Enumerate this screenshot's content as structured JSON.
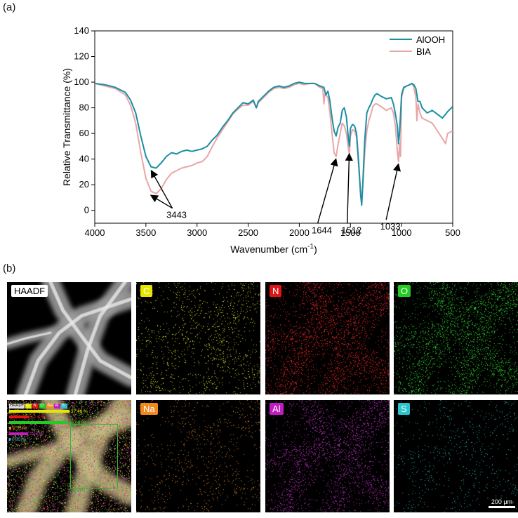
{
  "figure": {
    "panel_a_label": "(a)",
    "panel_b_label": "(b)"
  },
  "chart_data": {
    "type": "line",
    "xlabel_main": "Wavenumber (cm",
    "xlabel_sup": "-1",
    "xlabel_tail": ")",
    "ylabel": "Relative Transmittance (%)",
    "xlim": [
      4000,
      500
    ],
    "ylim": [
      -10,
      140
    ],
    "x_ticks": [
      4000,
      3500,
      3000,
      2500,
      2000,
      1500,
      1000,
      500
    ],
    "y_ticks": [
      0,
      20,
      40,
      60,
      80,
      100,
      120,
      140
    ],
    "legend_position": "top-right",
    "series": [
      {
        "name": "AlOOH",
        "color": "#1a8fa3",
        "points": [
          [
            4000,
            99
          ],
          [
            3900,
            98
          ],
          [
            3800,
            96
          ],
          [
            3700,
            92
          ],
          [
            3650,
            86
          ],
          [
            3600,
            76
          ],
          [
            3550,
            58
          ],
          [
            3500,
            42
          ],
          [
            3450,
            34
          ],
          [
            3400,
            33
          ],
          [
            3350,
            37
          ],
          [
            3300,
            42
          ],
          [
            3250,
            45
          ],
          [
            3200,
            44
          ],
          [
            3150,
            46
          ],
          [
            3100,
            47
          ],
          [
            3050,
            46
          ],
          [
            3000,
            47
          ],
          [
            2950,
            48
          ],
          [
            2900,
            50
          ],
          [
            2850,
            55
          ],
          [
            2800,
            59
          ],
          [
            2750,
            65
          ],
          [
            2700,
            70
          ],
          [
            2650,
            76
          ],
          [
            2600,
            80
          ],
          [
            2550,
            84
          ],
          [
            2500,
            83
          ],
          [
            2450,
            86
          ],
          [
            2420,
            80
          ],
          [
            2400,
            85
          ],
          [
            2350,
            89
          ],
          [
            2300,
            93
          ],
          [
            2250,
            96
          ],
          [
            2200,
            97
          ],
          [
            2150,
            96
          ],
          [
            2100,
            97
          ],
          [
            2050,
            99
          ],
          [
            2000,
            100
          ],
          [
            1950,
            99
          ],
          [
            1900,
            99
          ],
          [
            1850,
            99
          ],
          [
            1800,
            97
          ],
          [
            1760,
            96
          ],
          [
            1740,
            90
          ],
          [
            1720,
            93
          ],
          [
            1700,
            85
          ],
          [
            1680,
            72
          ],
          [
            1660,
            62
          ],
          [
            1640,
            58
          ],
          [
            1620,
            65
          ],
          [
            1600,
            68
          ],
          [
            1580,
            78
          ],
          [
            1560,
            80
          ],
          [
            1540,
            73
          ],
          [
            1520,
            56
          ],
          [
            1510,
            50
          ],
          [
            1500,
            64
          ],
          [
            1480,
            67
          ],
          [
            1460,
            66
          ],
          [
            1440,
            60
          ],
          [
            1420,
            38
          ],
          [
            1400,
            12
          ],
          [
            1390,
            4
          ],
          [
            1380,
            20
          ],
          [
            1360,
            55
          ],
          [
            1340,
            76
          ],
          [
            1320,
            80
          ],
          [
            1300,
            83
          ],
          [
            1280,
            87
          ],
          [
            1260,
            90
          ],
          [
            1240,
            91
          ],
          [
            1200,
            89
          ],
          [
            1150,
            87
          ],
          [
            1100,
            88
          ],
          [
            1080,
            83
          ],
          [
            1060,
            75
          ],
          [
            1040,
            65
          ],
          [
            1030,
            52
          ],
          [
            1020,
            60
          ],
          [
            1000,
            90
          ],
          [
            980,
            96
          ],
          [
            950,
            97
          ],
          [
            920,
            98
          ],
          [
            900,
            99
          ],
          [
            880,
            98
          ],
          [
            860,
            95
          ],
          [
            850,
            90
          ],
          [
            840,
            85
          ],
          [
            820,
            85
          ],
          [
            800,
            80
          ],
          [
            750,
            76
          ],
          [
            700,
            78
          ],
          [
            650,
            75
          ],
          [
            600,
            72
          ],
          [
            550,
            77
          ],
          [
            500,
            81
          ]
        ]
      },
      {
        "name": "BIA",
        "color": "#e8a7a7",
        "points": [
          [
            4000,
            99
          ],
          [
            3900,
            97
          ],
          [
            3800,
            95
          ],
          [
            3700,
            90
          ],
          [
            3650,
            82
          ],
          [
            3600,
            68
          ],
          [
            3550,
            45
          ],
          [
            3500,
            25
          ],
          [
            3450,
            15
          ],
          [
            3400,
            13
          ],
          [
            3350,
            17
          ],
          [
            3300,
            24
          ],
          [
            3250,
            29
          ],
          [
            3200,
            31
          ],
          [
            3150,
            33
          ],
          [
            3100,
            34
          ],
          [
            3050,
            35
          ],
          [
            3000,
            37
          ],
          [
            2950,
            38
          ],
          [
            2900,
            42
          ],
          [
            2850,
            50
          ],
          [
            2800,
            57
          ],
          [
            2750,
            63
          ],
          [
            2700,
            69
          ],
          [
            2650,
            75
          ],
          [
            2600,
            79
          ],
          [
            2550,
            82
          ],
          [
            2500,
            82
          ],
          [
            2450,
            85
          ],
          [
            2420,
            80
          ],
          [
            2400,
            84
          ],
          [
            2350,
            88
          ],
          [
            2300,
            92
          ],
          [
            2250,
            95
          ],
          [
            2200,
            96
          ],
          [
            2150,
            95
          ],
          [
            2100,
            96
          ],
          [
            2050,
            98
          ],
          [
            2000,
            99
          ],
          [
            1950,
            98
          ],
          [
            1900,
            99
          ],
          [
            1850,
            99
          ],
          [
            1800,
            96
          ],
          [
            1770,
            95
          ],
          [
            1760,
            83
          ],
          [
            1750,
            91
          ],
          [
            1720,
            88
          ],
          [
            1700,
            76
          ],
          [
            1680,
            60
          ],
          [
            1660,
            45
          ],
          [
            1640,
            42
          ],
          [
            1620,
            52
          ],
          [
            1600,
            60
          ],
          [
            1580,
            68
          ],
          [
            1560,
            66
          ],
          [
            1540,
            60
          ],
          [
            1520,
            48
          ],
          [
            1510,
            44
          ],
          [
            1500,
            58
          ],
          [
            1480,
            63
          ],
          [
            1460,
            62
          ],
          [
            1440,
            57
          ],
          [
            1420,
            35
          ],
          [
            1400,
            10
          ],
          [
            1390,
            6
          ],
          [
            1380,
            18
          ],
          [
            1360,
            45
          ],
          [
            1340,
            62
          ],
          [
            1320,
            70
          ],
          [
            1300,
            75
          ],
          [
            1280,
            81
          ],
          [
            1260,
            83
          ],
          [
            1240,
            83
          ],
          [
            1200,
            81
          ],
          [
            1150,
            78
          ],
          [
            1100,
            80
          ],
          [
            1080,
            76
          ],
          [
            1060,
            65
          ],
          [
            1040,
            45
          ],
          [
            1030,
            38
          ],
          [
            1020,
            52
          ],
          [
            1010,
            42
          ],
          [
            1000,
            88
          ],
          [
            980,
            95
          ],
          [
            950,
            97
          ],
          [
            920,
            98
          ],
          [
            900,
            99
          ],
          [
            880,
            96
          ],
          [
            860,
            88
          ],
          [
            850,
            70
          ],
          [
            840,
            83
          ],
          [
            820,
            76
          ],
          [
            800,
            72
          ],
          [
            750,
            70
          ],
          [
            700,
            68
          ],
          [
            650,
            62
          ],
          [
            600,
            56
          ],
          [
            570,
            52
          ],
          [
            550,
            60
          ],
          [
            500,
            62
          ]
        ]
      }
    ],
    "annotations": [
      {
        "text": "3443",
        "x": 3443,
        "y": 32,
        "arrows": [
          [
            3443,
            32
          ],
          [
            3443,
            13
          ]
        ]
      },
      {
        "text": "1644",
        "x": 1644,
        "y": 41,
        "arrows": [
          [
            1644,
            41
          ]
        ]
      },
      {
        "text": "1512",
        "x": 1512,
        "y": 45,
        "arrows": [
          [
            1512,
            45
          ]
        ]
      },
      {
        "text": "1033",
        "x": 1033,
        "y": 37,
        "arrows": [
          [
            1033,
            37
          ]
        ]
      }
    ]
  },
  "maps": {
    "tiles": [
      {
        "label": "HAADF",
        "kind": "haadf"
      },
      {
        "label": "C",
        "kind": "element",
        "color": "#e6e600",
        "dot_color": "#cfcf2a",
        "density": 0.18
      },
      {
        "label": "N",
        "kind": "element",
        "color": "#e01414",
        "dot_color": "#d42222",
        "density": 0.45
      },
      {
        "label": "O",
        "kind": "element",
        "color": "#22cc22",
        "dot_color": "#2dbf2d",
        "density": 0.42
      },
      {
        "label": "",
        "kind": "overlay"
      },
      {
        "label": "Na",
        "kind": "element",
        "color": "#f08a1c",
        "dot_color": "#c9772a",
        "density": 0.12
      },
      {
        "label": "Al",
        "kind": "element",
        "color": "#c21cc2",
        "dot_color": "#a62ea6",
        "density": 0.38
      },
      {
        "label": "S",
        "kind": "element",
        "color": "#29c4cc",
        "dot_color": "#2fa8a8",
        "density": 0.1
      }
    ],
    "overlay_legend": {
      "chips": [
        "HAADF",
        "C",
        "N",
        "O",
        "Na",
        "Al",
        "S"
      ],
      "chip_colors": [
        "#dddddd",
        "#e6e600",
        "#e01414",
        "#22cc22",
        "#f08a1c",
        "#c21cc2",
        "#29c4cc"
      ],
      "rows": [
        {
          "text": "37.48 %",
          "color": "#e6e600",
          "fraction": 0.3748
        },
        {
          "text": "12.6 %",
          "color": "#e01414",
          "fraction": 0.126
        },
        {
          "text": "36.09 %",
          "color": "#22cc22",
          "fraction": 0.3609
        },
        {
          "text": "1.35 %",
          "color": "#f08a1c",
          "fraction": 0.0135
        },
        {
          "text": "11.8 %",
          "color": "#c21cc2",
          "fraction": 0.118
        },
        {
          "text": "0.75 %",
          "color": "#29c4cc",
          "fraction": 0.0075
        }
      ],
      "area_label": "Area#1"
    },
    "scale_bar": "200 μm"
  }
}
